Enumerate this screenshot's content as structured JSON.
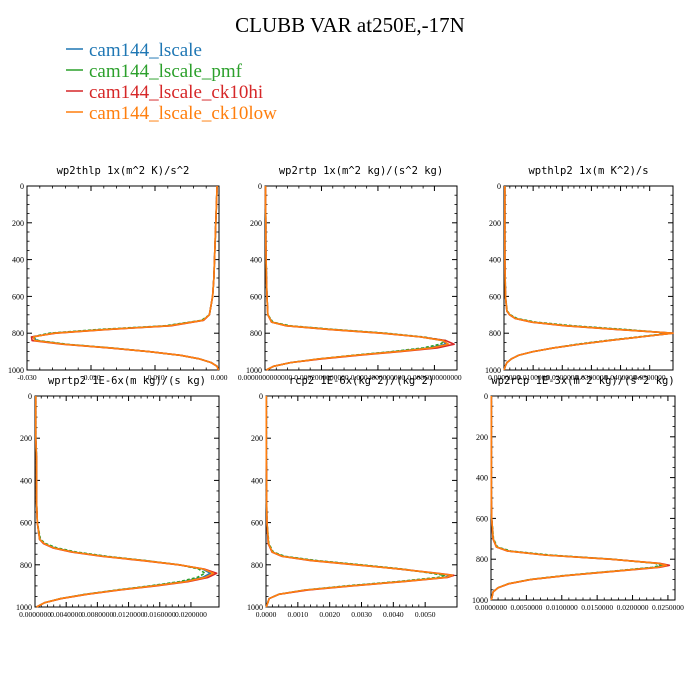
{
  "figure": {
    "title": "CLUBB VAR at250E,-17N",
    "legend": [
      {
        "label": "cam144_lscale",
        "color": "#1f77b4"
      },
      {
        "label": "cam144_lscale_pmf",
        "color": "#2ca02c"
      },
      {
        "label": "cam144_lscale_ck10hi",
        "color": "#d62728"
      },
      {
        "label": "cam144_lscale_ck10low",
        "color": "#ff7f0e"
      }
    ]
  },
  "chart_data": [
    {
      "type": "line",
      "title": "wp2thlp  1x(m^2 K)/s^2",
      "xlim": [
        -0.03,
        0.0
      ],
      "ylim": [
        1000,
        0
      ],
      "y_ticks": [
        "0",
        "200",
        "400",
        "600",
        "800",
        "1000"
      ],
      "x_tick_values": [
        -0.03,
        -0.02,
        -0.01,
        0.0
      ],
      "x_tick_labels": [
        "-0.030",
        "-0.020",
        "-0.010",
        "0.000"
      ],
      "y": [
        0,
        100,
        200,
        300,
        400,
        500,
        600,
        700,
        730,
        760,
        780,
        800,
        820,
        840,
        860,
        880,
        900,
        920,
        940,
        960,
        980,
        1000
      ],
      "series": [
        {
          "name": "cam144_lscale",
          "color": "#1f77b4",
          "values": [
            -0.0003,
            -0.0004,
            -0.0005,
            -0.0006,
            -0.0007,
            -0.0008,
            -0.001,
            -0.0015,
            -0.0025,
            -0.008,
            -0.018,
            -0.026,
            -0.029,
            -0.0285,
            -0.024,
            -0.017,
            -0.011,
            -0.006,
            -0.003,
            -0.0012,
            -0.0003,
            -0.0001
          ]
        },
        {
          "name": "cam144_lscale_pmf",
          "color": "#2ca02c",
          "values": [
            -0.0003,
            -0.0004,
            -0.0005,
            -0.0006,
            -0.0007,
            -0.0008,
            -0.001,
            -0.0015,
            -0.0027,
            -0.0085,
            -0.019,
            -0.0265,
            -0.0292,
            -0.0282,
            -0.0238,
            -0.0168,
            -0.011,
            -0.006,
            -0.003,
            -0.0012,
            -0.0003,
            -0.0001
          ]
        },
        {
          "name": "cam144_lscale_ck10hi",
          "color": "#d62728",
          "values": [
            -0.0003,
            -0.0004,
            -0.0005,
            -0.0006,
            -0.0007,
            -0.0008,
            -0.001,
            -0.0015,
            -0.0024,
            -0.0075,
            -0.0175,
            -0.0255,
            -0.0293,
            -0.0292,
            -0.0245,
            -0.0172,
            -0.011,
            -0.006,
            -0.003,
            -0.0012,
            -0.0003,
            -0.0001
          ]
        },
        {
          "name": "cam144_lscale_ck10low",
          "color": "#ff7f0e",
          "values": [
            -0.0003,
            -0.0004,
            -0.0005,
            -0.0006,
            -0.0007,
            -0.0008,
            -0.001,
            -0.0015,
            -0.0025,
            -0.0078,
            -0.0178,
            -0.0258,
            -0.029,
            -0.0288,
            -0.0242,
            -0.017,
            -0.011,
            -0.006,
            -0.003,
            -0.0012,
            -0.0003,
            -0.0001
          ]
        }
      ]
    },
    {
      "type": "line",
      "title": "wp2rtp  1x(m^2 kg)/(s^2 kg)",
      "xlim": [
        0.0,
        0.00068
      ],
      "ylim": [
        1000,
        0
      ],
      "y_ticks": [
        "0",
        "200",
        "400",
        "600",
        "800",
        "1000"
      ],
      "x_tick_values": [
        0.0,
        0.0002,
        0.0004,
        0.0006
      ],
      "x_tick_labels": [
        "0.0000000000000",
        "0.0002000000000",
        "0.0004000000000",
        "0.0006000000000"
      ],
      "y": [
        0,
        100,
        200,
        300,
        400,
        500,
        600,
        700,
        740,
        760,
        780,
        800,
        820,
        840,
        860,
        880,
        900,
        920,
        940,
        960,
        980,
        1000
      ],
      "series": [
        {
          "name": "cam144_lscale",
          "color": "#1f77b4",
          "values": [
            2e-06,
            2e-06,
            3e-06,
            3e-06,
            4e-06,
            5e-06,
            7e-06,
            1e-05,
            2.5e-05,
            8e-05,
            0.00024,
            0.00042,
            0.00055,
            0.00063,
            0.00064,
            0.00058,
            0.00046,
            0.00032,
            0.00019,
            9e-05,
            3e-05,
            5e-06
          ]
        },
        {
          "name": "cam144_lscale_pmf",
          "color": "#2ca02c",
          "values": [
            2e-06,
            2e-06,
            3e-06,
            3e-06,
            4e-06,
            5e-06,
            7e-06,
            1e-05,
            2.8e-05,
            9e-05,
            0.00025,
            0.00043,
            0.00056,
            0.00064,
            0.00062,
            0.00056,
            0.00045,
            0.00031,
            0.00019,
            9e-05,
            3e-05,
            5e-06
          ]
        },
        {
          "name": "cam144_lscale_ck10hi",
          "color": "#d62728",
          "values": [
            2e-06,
            2e-06,
            3e-06,
            3e-06,
            4e-06,
            5e-06,
            7e-06,
            1e-05,
            2.3e-05,
            7.5e-05,
            0.00023,
            0.00041,
            0.00055,
            0.00064,
            0.00067,
            0.00061,
            0.00048,
            0.00033,
            0.0002,
            9e-05,
            3e-05,
            5e-06
          ]
        },
        {
          "name": "cam144_lscale_ck10low",
          "color": "#ff7f0e",
          "values": [
            2e-06,
            2e-06,
            3e-06,
            3e-06,
            4e-06,
            5e-06,
            7e-06,
            1e-05,
            2.4e-05,
            7.8e-05,
            0.000235,
            0.000415,
            0.00055,
            0.00063,
            0.00065,
            0.00059,
            0.00047,
            0.00032,
            0.00019,
            9e-05,
            3e-05,
            5e-06
          ]
        }
      ]
    },
    {
      "type": "line",
      "title": "wpthlp2  1x(m K^2)/s",
      "xlim": [
        0.0,
        0.058
      ],
      "ylim": [
        1000,
        0
      ],
      "y_ticks": [
        "0",
        "200",
        "400",
        "600",
        "800",
        "1000"
      ],
      "x_tick_values": [
        0.0,
        0.01,
        0.02,
        0.03,
        0.04,
        0.05
      ],
      "x_tick_labels": [
        "0.0000000",
        "0.0100000",
        "0.0200000",
        "0.0300000",
        "0.0400000",
        "0.0500000"
      ],
      "y": [
        0,
        100,
        200,
        300,
        400,
        500,
        600,
        680,
        700,
        720,
        740,
        760,
        780,
        800,
        820,
        840,
        860,
        880,
        900,
        920,
        940,
        960,
        980,
        1000
      ],
      "series": [
        {
          "name": "cam144_lscale",
          "color": "#1f77b4",
          "values": [
            0.0003,
            0.0003,
            0.0003,
            0.0003,
            0.0003,
            0.0004,
            0.0005,
            0.001,
            0.002,
            0.004,
            0.01,
            0.022,
            0.04,
            0.058,
            0.047,
            0.036,
            0.026,
            0.017,
            0.01,
            0.005,
            0.0025,
            0.001,
            0.0004,
            0.0001
          ]
        },
        {
          "name": "cam144_lscale_pmf",
          "color": "#2ca02c",
          "values": [
            0.0003,
            0.0003,
            0.0003,
            0.0003,
            0.0003,
            0.0004,
            0.0005,
            0.0011,
            0.0022,
            0.0045,
            0.011,
            0.024,
            0.042,
            0.057,
            0.046,
            0.035,
            0.025,
            0.017,
            0.01,
            0.005,
            0.0025,
            0.001,
            0.0004,
            0.0001
          ]
        },
        {
          "name": "cam144_lscale_ck10hi",
          "color": "#d62728",
          "values": [
            0.0003,
            0.0003,
            0.0003,
            0.0003,
            0.0003,
            0.0004,
            0.0005,
            0.001,
            0.0019,
            0.0038,
            0.0095,
            0.021,
            0.039,
            0.058,
            0.047,
            0.036,
            0.026,
            0.017,
            0.01,
            0.005,
            0.0025,
            0.001,
            0.0004,
            0.0001
          ]
        },
        {
          "name": "cam144_lscale_ck10low",
          "color": "#ff7f0e",
          "values": [
            0.0003,
            0.0003,
            0.0003,
            0.0003,
            0.0003,
            0.0004,
            0.0005,
            0.001,
            0.002,
            0.0039,
            0.0098,
            0.0215,
            0.0395,
            0.058,
            0.047,
            0.036,
            0.026,
            0.017,
            0.01,
            0.005,
            0.0025,
            0.001,
            0.0004,
            0.0001
          ]
        }
      ]
    },
    {
      "type": "line",
      "title": "wprtp2  1E-6x(m kg)/(s kg)",
      "xlim": [
        0.0,
        0.0236
      ],
      "ylim": [
        1000,
        0
      ],
      "y_ticks": [
        "0",
        "200",
        "400",
        "600",
        "800",
        "1000"
      ],
      "x_tick_values": [
        0.0,
        0.004,
        0.008,
        0.012,
        0.016,
        0.02
      ],
      "x_tick_labels": [
        "0.0000000",
        "0.0040000",
        "0.0080000",
        "0.0120000",
        "0.0160000",
        "0.0200000"
      ],
      "y": [
        0,
        100,
        200,
        300,
        400,
        500,
        600,
        680,
        700,
        720,
        740,
        760,
        780,
        800,
        820,
        840,
        860,
        880,
        900,
        920,
        940,
        960,
        980,
        1000
      ],
      "series": [
        {
          "name": "cam144_lscale",
          "color": "#1f77b4",
          "values": [
            0.0001,
            0.0001,
            0.0001,
            0.0002,
            0.0002,
            0.0002,
            0.0003,
            0.0006,
            0.0012,
            0.0025,
            0.005,
            0.009,
            0.014,
            0.0185,
            0.0215,
            0.0225,
            0.0215,
            0.019,
            0.015,
            0.0105,
            0.0065,
            0.0033,
            0.0012,
            0.0002
          ]
        },
        {
          "name": "cam144_lscale_pmf",
          "color": "#2ca02c",
          "values": [
            0.0001,
            0.0001,
            0.0001,
            0.0002,
            0.0002,
            0.0002,
            0.0003,
            0.0007,
            0.0014,
            0.0028,
            0.0054,
            0.0093,
            0.0142,
            0.0185,
            0.021,
            0.0218,
            0.0208,
            0.0185,
            0.0147,
            0.0103,
            0.0064,
            0.0033,
            0.0012,
            0.0002
          ]
        },
        {
          "name": "cam144_lscale_ck10hi",
          "color": "#d62728",
          "values": [
            0.0001,
            0.0001,
            0.0001,
            0.0002,
            0.0002,
            0.0002,
            0.0003,
            0.0006,
            0.0011,
            0.0023,
            0.0047,
            0.0086,
            0.0137,
            0.0184,
            0.0217,
            0.0233,
            0.0222,
            0.0196,
            0.0155,
            0.0108,
            0.0067,
            0.0034,
            0.0012,
            0.0002
          ]
        },
        {
          "name": "cam144_lscale_ck10low",
          "color": "#ff7f0e",
          "values": [
            0.0001,
            0.0001,
            0.0001,
            0.0002,
            0.0002,
            0.0002,
            0.0003,
            0.0006,
            0.0012,
            0.0024,
            0.0049,
            0.0088,
            0.0139,
            0.0185,
            0.0216,
            0.0229,
            0.0218,
            0.0193,
            0.0152,
            0.0106,
            0.0066,
            0.0033,
            0.0012,
            0.0002
          ]
        }
      ]
    },
    {
      "type": "line",
      "title": "rcp2  1E-6x(kg^2)/(kg^2)",
      "xlim": [
        0.0,
        0.006
      ],
      "ylim": [
        1000,
        0
      ],
      "y_ticks": [
        "0",
        "200",
        "400",
        "600",
        "800",
        "1000"
      ],
      "x_tick_values": [
        0.0,
        0.001,
        0.002,
        0.003,
        0.004,
        0.005
      ],
      "x_tick_labels": [
        "0.0000",
        "0.0010",
        "0.0020",
        "0.0030",
        "0.0040",
        "0.0050"
      ],
      "y": [
        0,
        100,
        200,
        300,
        400,
        500,
        600,
        700,
        740,
        760,
        780,
        800,
        820,
        840,
        850,
        860,
        880,
        900,
        920,
        940,
        960,
        1000
      ],
      "series": [
        {
          "name": "cam144_lscale",
          "color": "#1f77b4",
          "values": [
            1e-05,
            1e-05,
            1e-05,
            1e-05,
            2e-05,
            2e-05,
            3e-05,
            8e-05,
            0.0002,
            0.00055,
            0.0015,
            0.0029,
            0.0042,
            0.0053,
            0.0058,
            0.0056,
            0.0042,
            0.0026,
            0.0012,
            0.0004,
            0.0001,
            1e-05
          ]
        },
        {
          "name": "cam144_lscale_pmf",
          "color": "#2ca02c",
          "values": [
            1e-05,
            1e-05,
            1e-05,
            1e-05,
            2e-05,
            2e-05,
            3e-05,
            9e-05,
            0.00023,
            0.0006,
            0.0016,
            0.003,
            0.0043,
            0.0052,
            0.0056,
            0.0054,
            0.0041,
            0.0025,
            0.0012,
            0.0004,
            0.0001,
            1e-05
          ]
        },
        {
          "name": "cam144_lscale_ck10hi",
          "color": "#d62728",
          "values": [
            1e-05,
            1e-05,
            1e-05,
            1e-05,
            2e-05,
            2e-05,
            3e-05,
            7e-05,
            0.00019,
            0.0005,
            0.0014,
            0.0028,
            0.0042,
            0.0054,
            0.0059,
            0.0057,
            0.0043,
            0.0027,
            0.0013,
            0.0004,
            0.0001,
            1e-05
          ]
        },
        {
          "name": "cam144_lscale_ck10low",
          "color": "#ff7f0e",
          "values": [
            1e-05,
            1e-05,
            1e-05,
            1e-05,
            2e-05,
            2e-05,
            3e-05,
            8e-05,
            0.0002,
            0.00052,
            0.00145,
            0.00285,
            0.0042,
            0.00535,
            0.00585,
            0.00565,
            0.00425,
            0.00265,
            0.0012,
            0.0004,
            0.0001,
            1e-05
          ]
        }
      ]
    },
    {
      "type": "line",
      "title": "wp2rcp  1E-3x(m^2 kg)/(s^2 kg)",
      "xlim": [
        0.0,
        0.026
      ],
      "ylim": [
        1000,
        0
      ],
      "y_ticks": [
        "0",
        "200",
        "400",
        "600",
        "800",
        "1000"
      ],
      "x_tick_values": [
        0.0,
        0.005,
        0.01,
        0.015,
        0.02,
        0.025
      ],
      "x_tick_labels": [
        "0.0000000",
        "0.0050000",
        "0.0100000",
        "0.0150000",
        "0.0200000",
        "0.0250000"
      ],
      "y": [
        0,
        100,
        200,
        300,
        400,
        500,
        600,
        700,
        740,
        760,
        780,
        800,
        820,
        830,
        840,
        860,
        880,
        900,
        920,
        940,
        960,
        1000
      ],
      "series": [
        {
          "name": "cam144_lscale",
          "color": "#1f77b4",
          "values": [
            5e-05,
            5e-05,
            5e-05,
            5e-05,
            5e-05,
            5e-05,
            0.0001,
            0.0003,
            0.0008,
            0.0025,
            0.008,
            0.017,
            0.0235,
            0.0245,
            0.0232,
            0.017,
            0.0105,
            0.0055,
            0.0025,
            0.001,
            0.0003,
            5e-05
          ]
        },
        {
          "name": "cam144_lscale_pmf",
          "color": "#2ca02c",
          "values": [
            5e-05,
            5e-05,
            5e-05,
            5e-05,
            5e-05,
            5e-05,
            0.0001,
            0.00035,
            0.0009,
            0.0028,
            0.0085,
            0.0172,
            0.0232,
            0.024,
            0.0228,
            0.0168,
            0.0103,
            0.0054,
            0.0025,
            0.001,
            0.0003,
            5e-05
          ]
        },
        {
          "name": "cam144_lscale_ck10hi",
          "color": "#d62728",
          "values": [
            5e-05,
            5e-05,
            5e-05,
            5e-05,
            5e-05,
            5e-05,
            0.0001,
            0.00028,
            0.00075,
            0.0023,
            0.0077,
            0.0168,
            0.0238,
            0.0252,
            0.0238,
            0.0173,
            0.0107,
            0.0056,
            0.0026,
            0.001,
            0.0003,
            5e-05
          ]
        },
        {
          "name": "cam144_lscale_ck10low",
          "color": "#ff7f0e",
          "values": [
            5e-05,
            5e-05,
            5e-05,
            5e-05,
            5e-05,
            5e-05,
            0.0001,
            0.0003,
            0.00078,
            0.0024,
            0.0078,
            0.0169,
            0.0236,
            0.0248,
            0.0235,
            0.0171,
            0.0106,
            0.0055,
            0.0025,
            0.001,
            0.0003,
            5e-05
          ]
        }
      ]
    }
  ]
}
